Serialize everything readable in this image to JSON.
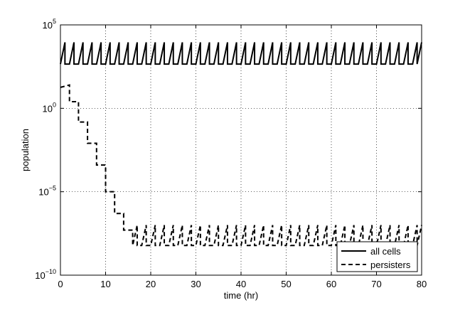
{
  "chart_data": {
    "type": "line",
    "title": "",
    "xlabel": "time (hr)",
    "ylabel": "population",
    "xlim": [
      0,
      80
    ],
    "ylim": [
      1e-10,
      100000
    ],
    "y_scale": "log",
    "grid": true,
    "legend_position": "bottom-right",
    "x_ticks": [
      0,
      10,
      20,
      30,
      40,
      50,
      60,
      70,
      80
    ],
    "x_tick_labels": [
      "0",
      "10",
      "20",
      "30",
      "40",
      "50",
      "60",
      "70",
      "80"
    ],
    "y_ticks": [
      1e-10,
      1e-05,
      1,
      100000
    ],
    "y_tick_labels": [
      {
        "base": "10",
        "exp": "−10"
      },
      {
        "base": "10",
        "exp": "−5"
      },
      {
        "base": "10",
        "exp": "0"
      },
      {
        "base": "10",
        "exp": "5"
      }
    ],
    "series": [
      {
        "name": "all cells",
        "style": "solid",
        "color": "#000000",
        "period_hr": 2,
        "min": 450,
        "max": 9000,
        "x_start": 0,
        "x_end": 80
      },
      {
        "name": "persisters",
        "style": "dashed",
        "color": "#000000",
        "initial_points": [
          [
            0,
            18
          ],
          [
            2,
            25
          ],
          [
            2,
            2.5
          ],
          [
            4,
            2.5
          ],
          [
            4,
            0.15
          ],
          [
            6,
            0.15
          ],
          [
            6,
            0.008
          ],
          [
            8,
            0.008
          ],
          [
            8,
            0.0004
          ],
          [
            10,
            0.0004
          ],
          [
            10,
            1e-05
          ],
          [
            12,
            1e-05
          ],
          [
            12,
            5e-07
          ],
          [
            14,
            5e-07
          ],
          [
            14,
            5e-08
          ],
          [
            16,
            5e-08
          ]
        ],
        "steady_start_hr": 16,
        "period_hr": 2,
        "min": 6e-09,
        "max": 1e-07,
        "x_end": 80
      }
    ]
  }
}
